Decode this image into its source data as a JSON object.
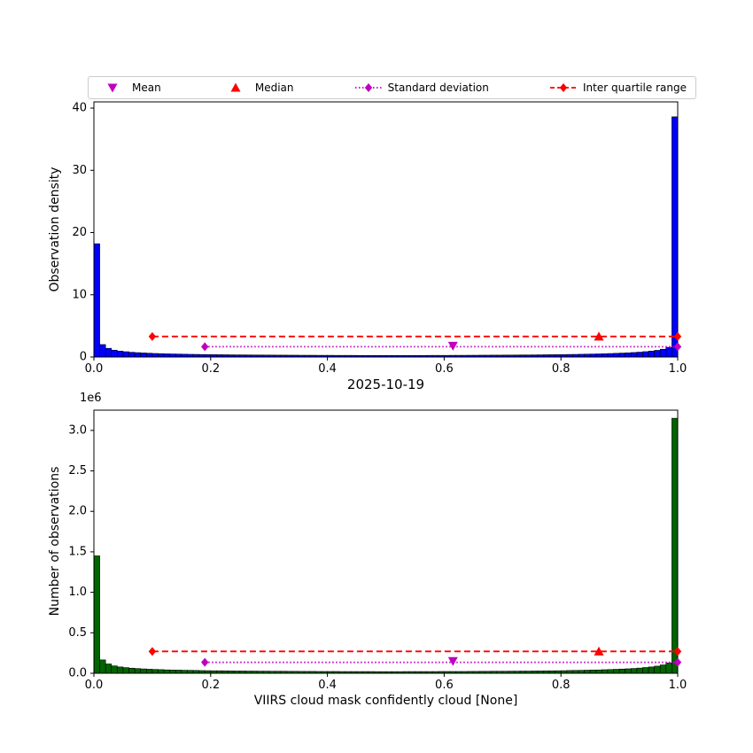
{
  "figure": {
    "title": "2025-10-19",
    "xlabel": "VIIRS cloud mask confidently cloud [None]",
    "background": "#ffffff"
  },
  "palette": {
    "mean": "#bf00bf",
    "median": "#ff0000",
    "std": "#bf00bf",
    "iqr": "#ff0000",
    "axis": "#000000"
  },
  "legend": {
    "items": [
      {
        "label": "Mean",
        "marker": "triangle-down",
        "color": "#bf00bf",
        "linestyle": "none"
      },
      {
        "label": "Median",
        "marker": "triangle-up",
        "color": "#ff0000",
        "linestyle": "none"
      },
      {
        "label": "Standard deviation",
        "marker": "diamond",
        "color": "#bf00bf",
        "linestyle": "dotted"
      },
      {
        "label": "Inter quartile range",
        "marker": "diamond",
        "color": "#ff0000",
        "linestyle": "dashed"
      }
    ]
  },
  "chart_data": [
    {
      "type": "bar",
      "subtype": "histogram",
      "ylabel": "Observation density",
      "bar_color": "#0000ff",
      "bar_edge_color": "#000000",
      "xlim": [
        0.0,
        1.0
      ],
      "ylim": [
        0,
        41
      ],
      "xticks": [
        0.0,
        0.2,
        0.4,
        0.6,
        0.8,
        1.0
      ],
      "xtick_labels": [
        "0.0",
        "0.2",
        "0.4",
        "0.6",
        "0.8",
        "1.0"
      ],
      "yticks": [
        0,
        10,
        20,
        30,
        40
      ],
      "ytick_labels": [
        "0",
        "10",
        "20",
        "30",
        "40"
      ],
      "grid": false,
      "legend_position": "top",
      "values": [
        18.2,
        2.0,
        1.4,
        1.1,
        0.95,
        0.85,
        0.76,
        0.7,
        0.65,
        0.61,
        0.57,
        0.54,
        0.51,
        0.49,
        0.47,
        0.45,
        0.43,
        0.42,
        0.4,
        0.39,
        0.38,
        0.37,
        0.36,
        0.35,
        0.34,
        0.34,
        0.33,
        0.32,
        0.32,
        0.31,
        0.31,
        0.3,
        0.3,
        0.29,
        0.29,
        0.28,
        0.28,
        0.28,
        0.27,
        0.27,
        0.27,
        0.26,
        0.26,
        0.26,
        0.26,
        0.25,
        0.25,
        0.25,
        0.25,
        0.25,
        0.25,
        0.25,
        0.25,
        0.25,
        0.25,
        0.25,
        0.25,
        0.26,
        0.26,
        0.26,
        0.26,
        0.27,
        0.27,
        0.27,
        0.28,
        0.28,
        0.29,
        0.29,
        0.3,
        0.3,
        0.31,
        0.31,
        0.32,
        0.33,
        0.33,
        0.34,
        0.35,
        0.36,
        0.37,
        0.38,
        0.39,
        0.41,
        0.42,
        0.44,
        0.46,
        0.48,
        0.5,
        0.53,
        0.56,
        0.59,
        0.63,
        0.67,
        0.72,
        0.78,
        0.86,
        0.95,
        1.07,
        1.25,
        1.55,
        38.6
      ],
      "annotations": {
        "mean": {
          "x": 0.615,
          "y": 1.8
        },
        "median": {
          "x": 0.865,
          "y": 3.3
        },
        "std_range": {
          "x1": 0.19,
          "x2": 1.0,
          "y": 1.65
        },
        "iqr_range": {
          "x1": 0.1,
          "x2": 1.0,
          "y": 3.3
        }
      }
    },
    {
      "type": "bar",
      "subtype": "histogram",
      "ylabel": "Number of observations",
      "offset_text": "1e6",
      "y_unit_multiplier": 1000000,
      "bar_color": "#006400",
      "bar_edge_color": "#000000",
      "xlim": [
        0.0,
        1.0
      ],
      "ylim": [
        0,
        3.25
      ],
      "xticks": [
        0.0,
        0.2,
        0.4,
        0.6,
        0.8,
        1.0
      ],
      "xtick_labels": [
        "0.0",
        "0.2",
        "0.4",
        "0.6",
        "0.8",
        "1.0"
      ],
      "yticks": [
        0,
        0.5,
        1.0,
        1.5,
        2.0,
        2.5,
        3.0
      ],
      "ytick_labels": [
        "0.0",
        "0.5",
        "1.0",
        "1.5",
        "2.0",
        "2.5",
        "3.0"
      ],
      "grid": false,
      "values": [
        1.45,
        0.165,
        0.115,
        0.091,
        0.078,
        0.07,
        0.063,
        0.058,
        0.054,
        0.05,
        0.047,
        0.045,
        0.042,
        0.04,
        0.039,
        0.037,
        0.036,
        0.035,
        0.033,
        0.032,
        0.031,
        0.031,
        0.03,
        0.029,
        0.028,
        0.028,
        0.027,
        0.027,
        0.026,
        0.026,
        0.025,
        0.025,
        0.025,
        0.024,
        0.024,
        0.023,
        0.023,
        0.023,
        0.022,
        0.022,
        0.022,
        0.022,
        0.021,
        0.021,
        0.021,
        0.021,
        0.021,
        0.021,
        0.02,
        0.02,
        0.02,
        0.02,
        0.02,
        0.021,
        0.021,
        0.021,
        0.021,
        0.021,
        0.021,
        0.022,
        0.022,
        0.022,
        0.022,
        0.022,
        0.023,
        0.023,
        0.024,
        0.024,
        0.025,
        0.025,
        0.025,
        0.026,
        0.026,
        0.027,
        0.027,
        0.028,
        0.029,
        0.03,
        0.03,
        0.031,
        0.032,
        0.034,
        0.035,
        0.036,
        0.038,
        0.04,
        0.041,
        0.044,
        0.046,
        0.049,
        0.052,
        0.055,
        0.059,
        0.064,
        0.071,
        0.078,
        0.088,
        0.103,
        0.127,
        3.15
      ],
      "annotations": {
        "mean": {
          "x": 0.615,
          "y": 0.15
        },
        "median": {
          "x": 0.865,
          "y": 0.27
        },
        "std_range": {
          "x1": 0.19,
          "x2": 1.0,
          "y": 0.135
        },
        "iqr_range": {
          "x1": 0.1,
          "x2": 1.0,
          "y": 0.27
        }
      }
    }
  ]
}
